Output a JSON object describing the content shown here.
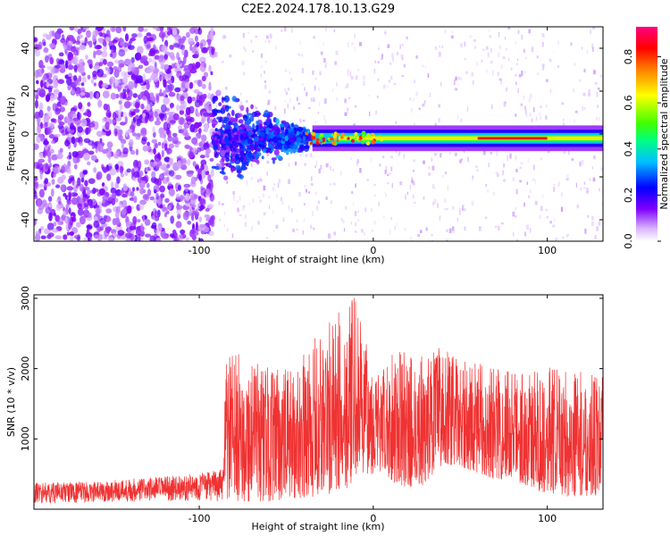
{
  "title": "C2E2.2024.178.10.13.G29",
  "chart_data": [
    {
      "type": "heatmap",
      "xlabel": "Height of straight line (km)",
      "ylabel": "Frequency (Hz)",
      "xlim": [
        -195,
        132
      ],
      "ylim": [
        -50,
        50
      ],
      "xticks": [
        -100,
        0,
        100
      ],
      "xtick_labels": [
        "-100",
        "0",
        "100"
      ],
      "yticks": [
        -40,
        -20,
        0,
        20,
        40
      ],
      "ytick_labels": [
        "-40",
        "-20",
        "0",
        "20",
        "40"
      ],
      "colorbar": {
        "label": "Normalized spectral amplitude",
        "range": [
          0,
          0.93
        ],
        "ticks": [
          0.0,
          0.2,
          0.4,
          0.6,
          0.8
        ],
        "tick_labels": [
          "0.0",
          "0.2",
          "0.4",
          "0.6",
          "0.8"
        ],
        "colors": [
          "#ffffff",
          "#d9b3ff",
          "#8000ff",
          "#0000ff",
          "#00c0ff",
          "#00ff80",
          "#40ff00",
          "#ffff00",
          "#ff8000",
          "#ff0000",
          "#ff0080"
        ]
      },
      "features": {
        "noise_region_x": [
          -195,
          -92
        ],
        "transition_region_x": [
          -92,
          -35
        ],
        "signal_line_x": [
          -35,
          132
        ],
        "signal_frequency": -2,
        "signal_peak_x": [
          60,
          100
        ]
      }
    },
    {
      "type": "line",
      "xlabel": "Height of straight line (km)",
      "ylabel": "SNR (10 * v/v)",
      "xlim": [
        -195,
        132
      ],
      "ylim": [
        0,
        3050
      ],
      "xticks": [
        -100,
        0,
        100
      ],
      "xtick_labels": [
        "-100",
        "0",
        "100"
      ],
      "yticks": [
        1000,
        2000,
        3000
      ],
      "ytick_labels": [
        "1000",
        "2000",
        "3000"
      ],
      "color": "#f03232",
      "envelope": {
        "x": [
          -195,
          -160,
          -140,
          -110,
          -86,
          -85,
          -75,
          -65,
          -55,
          -45,
          -35,
          -25,
          -15,
          -10,
          -5,
          5,
          10,
          20,
          30,
          40,
          50,
          60,
          70,
          80,
          90,
          100,
          110,
          120,
          132
        ],
        "upper": [
          380,
          390,
          440,
          480,
          570,
          2250,
          2200,
          2100,
          2000,
          2000,
          2400,
          2700,
          2900,
          3050,
          2400,
          1900,
          2350,
          2200,
          2200,
          2350,
          2100,
          2100,
          2050,
          2050,
          1950,
          2050,
          2000,
          1950,
          1900
        ],
        "lower": [
          80,
          90,
          100,
          120,
          110,
          100,
          100,
          100,
          120,
          160,
          160,
          180,
          300,
          450,
          500,
          500,
          400,
          300,
          350,
          650,
          600,
          520,
          420,
          420,
          300,
          220,
          180,
          180,
          200
        ]
      }
    }
  ]
}
